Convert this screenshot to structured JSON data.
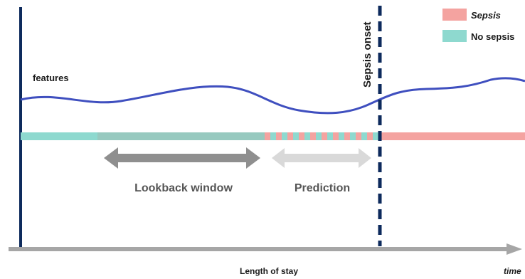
{
  "labels": {
    "features": "features",
    "sepsis_onset": "Sepsis onset",
    "lookback": "Lookback window",
    "prediction": "Prediction",
    "length_of_stay": "Length of stay",
    "time": "time"
  },
  "legend": {
    "sepsis": "Sepsis",
    "no_sepsis": "No sepsis"
  },
  "colors": {
    "axis_dark": "#0d2a5c",
    "curve": "#3f4fbf",
    "no_sepsis": "#8ed9cf",
    "no_sepsis_dark": "#97c9bf",
    "sepsis": "#f4a3a0",
    "arrow_dark": "#8f8f8f",
    "arrow_light": "#d9d9d9",
    "time_axis": "#a6a6a6"
  }
}
